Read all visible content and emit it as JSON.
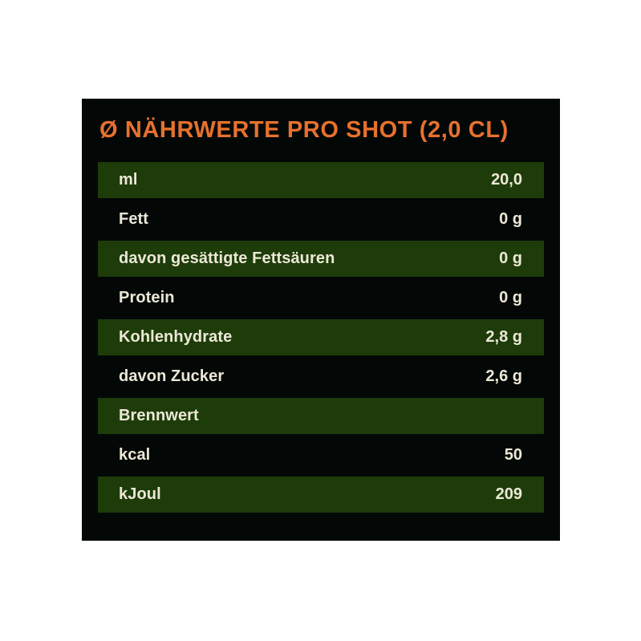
{
  "colors": {
    "page_bg": "#ffffff",
    "panel_bg": "#030807",
    "row_green": "#1e3c0a",
    "title_color": "#e7712e",
    "text_color": "#ece8d6"
  },
  "panel": {
    "title": "Ø NÄHRWERTE PRO SHOT (2,0 CL)"
  },
  "table": {
    "rows": [
      {
        "label": "ml",
        "value": "20,0"
      },
      {
        "label": "Fett",
        "value": "0 g"
      },
      {
        "label": "davon gesättigte Fettsäuren",
        "value": "0 g"
      },
      {
        "label": "Protein",
        "value": "0 g"
      },
      {
        "label": "Kohlenhydrate",
        "value": "2,8 g"
      },
      {
        "label": "davon Zucker",
        "value": "2,6 g"
      },
      {
        "label": "Brennwert",
        "value": ""
      },
      {
        "label": "kcal",
        "value": "50"
      },
      {
        "label": "kJoul",
        "value": "209"
      }
    ]
  }
}
